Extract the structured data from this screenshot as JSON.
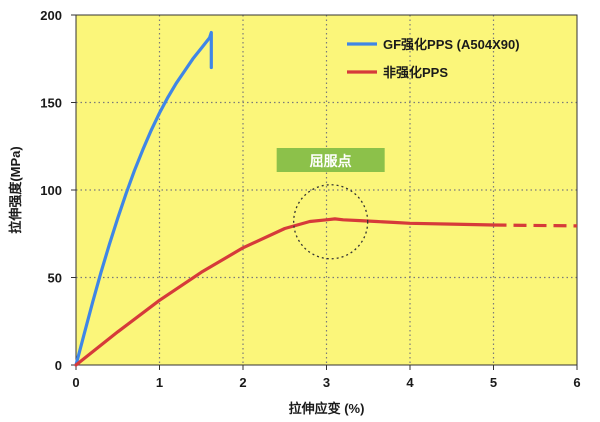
{
  "chart_data": {
    "type": "line",
    "xlabel": "拉伸应变 (%)",
    "ylabel": "拉伸强度(MPa)",
    "xlim": [
      0,
      6
    ],
    "ylim": [
      0,
      200
    ],
    "x_ticks": [
      0,
      1,
      2,
      3,
      4,
      5,
      6
    ],
    "y_ticks": [
      0,
      50,
      100,
      150,
      200
    ],
    "grid": true,
    "legend_position": "top-right",
    "colors": {
      "plot_background": "#fbf67a",
      "grid": "#7a7a7a",
      "annotation_box": "#8cc14a"
    },
    "series": [
      {
        "name": "GF强化PPS (A504X90)",
        "color": "#3f86e6",
        "x": [
          0,
          0.1,
          0.2,
          0.3,
          0.4,
          0.5,
          0.6,
          0.7,
          0.8,
          0.9,
          1.0,
          1.1,
          1.2,
          1.3,
          1.4,
          1.5,
          1.6,
          1.62,
          1.62
        ],
        "y": [
          0,
          18,
          36,
          53,
          69,
          84,
          98,
          111,
          123,
          134,
          144,
          153,
          161,
          168,
          175,
          181,
          187,
          190,
          170
        ]
      },
      {
        "name": "非强化PPS",
        "color": "#d63a3a",
        "x": [
          0,
          0.5,
          1.0,
          1.5,
          2.0,
          2.5,
          2.8,
          3.0,
          3.1,
          3.2,
          3.4,
          3.6,
          3.8,
          4.0,
          4.5,
          5.0
        ],
        "y": [
          0,
          19,
          37,
          53,
          67,
          78,
          82,
          83,
          83.5,
          83,
          82.5,
          82,
          81.5,
          81,
          80.5,
          80
        ],
        "extension": {
          "style": "dashed",
          "x": [
            5.0,
            6.0
          ],
          "y": [
            80,
            79.5
          ]
        }
      }
    ],
    "annotations": [
      {
        "text": "屈服点",
        "target_x": 3.05,
        "target_y": 83
      }
    ]
  }
}
